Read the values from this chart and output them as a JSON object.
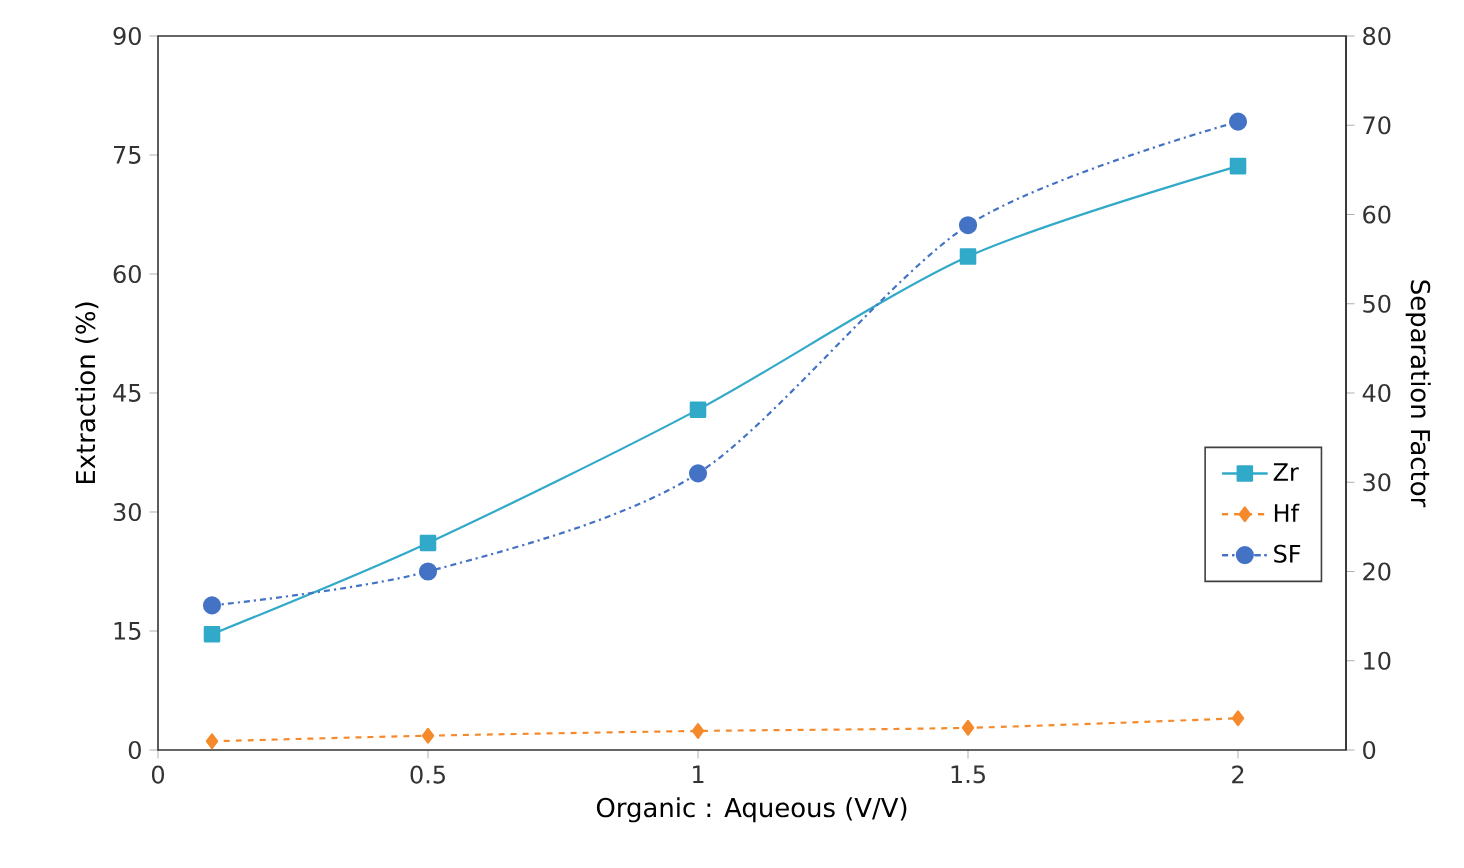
{
  "chart_data": {
    "type": "line",
    "xlabel": "Organic : Aqueous (V/V)",
    "ylabel": "Extraction (%)",
    "y2label": "Separation Factor",
    "x": [
      0.1,
      0.5,
      1,
      1.5,
      2
    ],
    "series": [
      {
        "name": "Zr",
        "color": "#31a9c9",
        "values": [
          14.6,
          26.1,
          42.9,
          62.2,
          73.6
        ],
        "marker": "square",
        "line_style": "solid"
      },
      {
        "name": "Hf",
        "color": "#f58a2c",
        "values": [
          1.1,
          1.8,
          2.4,
          2.8,
          4.0
        ],
        "marker": "diamond",
        "line_style": "dashed"
      },
      {
        "name": "SF",
        "color": "#4472c4",
        "values": [
          16.2,
          20.0,
          31.0,
          58.8,
          70.4
        ],
        "marker": "circle",
        "line_style": "dashdot",
        "axis": "y2"
      }
    ],
    "xlim": [
      0,
      2.2
    ],
    "xticks": [
      0,
      0.5,
      1,
      1.5,
      2
    ],
    "ylim": [
      0,
      90
    ],
    "yticks": [
      0,
      15,
      30,
      45,
      60,
      75,
      90
    ],
    "y2lim": [
      0,
      80
    ],
    "y2ticks": [
      0,
      10,
      20,
      30,
      40,
      50,
      60,
      70,
      80
    ],
    "grid": false,
    "legend": "right"
  }
}
